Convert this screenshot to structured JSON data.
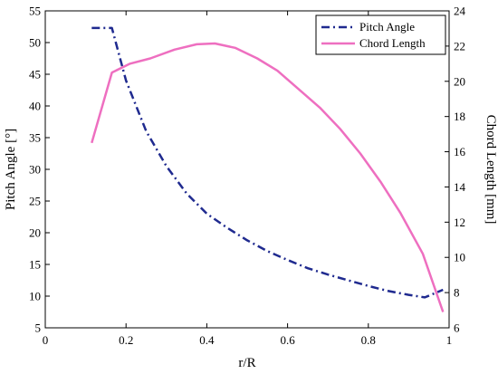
{
  "chart_data": {
    "type": "line",
    "title": "",
    "xlabel": "r/R",
    "ylabel_left": "Pitch Angle [°]",
    "ylabel_right": "Chord Length [mm]",
    "xlim": [
      0,
      1
    ],
    "ylim_left": [
      5,
      55
    ],
    "ylim_right": [
      6,
      24
    ],
    "xticks": [
      0,
      0.2,
      0.4,
      0.6,
      0.8,
      1
    ],
    "xtick_labels": [
      "0",
      "0.2",
      "0.4",
      "0.6",
      "0.8",
      "1"
    ],
    "yticks_left": [
      5,
      10,
      15,
      20,
      25,
      30,
      35,
      40,
      45,
      50,
      55
    ],
    "yticks_right": [
      6,
      8,
      10,
      12,
      14,
      16,
      18,
      20,
      22,
      24
    ],
    "grid": false,
    "legend_position": "top-right",
    "series": [
      {
        "name": "Pitch Angle",
        "axis": "left",
        "color": "#1f2a8f",
        "style": "dashdot",
        "x": [
          0.115,
          0.165,
          0.2,
          0.25,
          0.3,
          0.35,
          0.4,
          0.45,
          0.5,
          0.55,
          0.6,
          0.65,
          0.7,
          0.75,
          0.8,
          0.85,
          0.9,
          0.94,
          0.985
        ],
        "y": [
          52.3,
          52.3,
          44.0,
          36.0,
          30.5,
          26.2,
          23.0,
          20.8,
          18.8,
          17.1,
          15.7,
          14.4,
          13.4,
          12.5,
          11.6,
          10.8,
          10.2,
          9.8,
          11.0
        ]
      },
      {
        "name": "Chord Length",
        "axis": "right",
        "color": "#ee6fc0",
        "style": "solid",
        "x": [
          0.115,
          0.165,
          0.21,
          0.26,
          0.32,
          0.375,
          0.42,
          0.47,
          0.525,
          0.575,
          0.625,
          0.68,
          0.73,
          0.78,
          0.83,
          0.88,
          0.935,
          0.985
        ],
        "y": [
          16.5,
          20.5,
          21.0,
          21.3,
          21.8,
          22.1,
          22.15,
          21.9,
          21.3,
          20.6,
          19.6,
          18.5,
          17.3,
          15.9,
          14.3,
          12.5,
          10.2,
          6.9
        ]
      }
    ]
  }
}
